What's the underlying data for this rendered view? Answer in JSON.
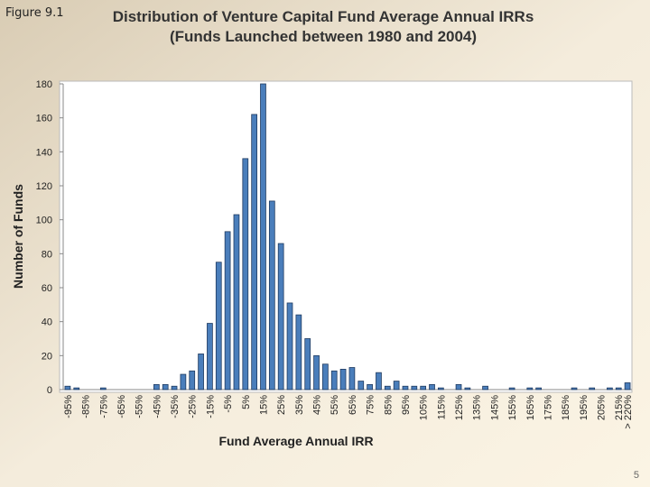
{
  "figure_label": "Figure 9.1",
  "page_number": "5",
  "chart_data": {
    "type": "bar",
    "title": "Distribution of Venture Capital Fund Average Annual IRRs",
    "subtitle": "(Funds Launched between 1980 and 2004)",
    "x_label": "Fund Average Annual IRR",
    "y_label": "Number of Funds",
    "categories": [
      "-95%",
      null,
      "-85%",
      null,
      "-75%",
      null,
      "-65%",
      null,
      "-55%",
      null,
      "-45%",
      null,
      "-35%",
      null,
      "-25%",
      null,
      "-15%",
      null,
      "-5%",
      null,
      "5%",
      null,
      "15%",
      null,
      "25%",
      null,
      "35%",
      null,
      "45%",
      null,
      "55%",
      null,
      "65%",
      null,
      "75%",
      null,
      "85%",
      null,
      "95%",
      null,
      "105%",
      null,
      "115%",
      null,
      "125%",
      null,
      "135%",
      null,
      "145%",
      null,
      "155%",
      null,
      "165%",
      null,
      "175%",
      null,
      "185%",
      null,
      "195%",
      null,
      "205%",
      null,
      "215%",
      "> 220%"
    ],
    "values": [
      2,
      1,
      0,
      0,
      1,
      0,
      0,
      0,
      0,
      0,
      3,
      3,
      2,
      9,
      11,
      21,
      39,
      75,
      93,
      103,
      136,
      162,
      180,
      111,
      86,
      51,
      44,
      30,
      20,
      15,
      11,
      12,
      13,
      5,
      3,
      10,
      2,
      5,
      2,
      2,
      2,
      3,
      1,
      0,
      3,
      1,
      0,
      2,
      0,
      0,
      1,
      0,
      1,
      1,
      0,
      0,
      0,
      1,
      0,
      1,
      0,
      1,
      1,
      4
    ],
    "color": "#4a7ebb",
    "ylim": [
      0,
      180
    ],
    "yticks": [
      0,
      20,
      40,
      60,
      80,
      100,
      120,
      140,
      160,
      180
    ],
    "grid": false
  }
}
